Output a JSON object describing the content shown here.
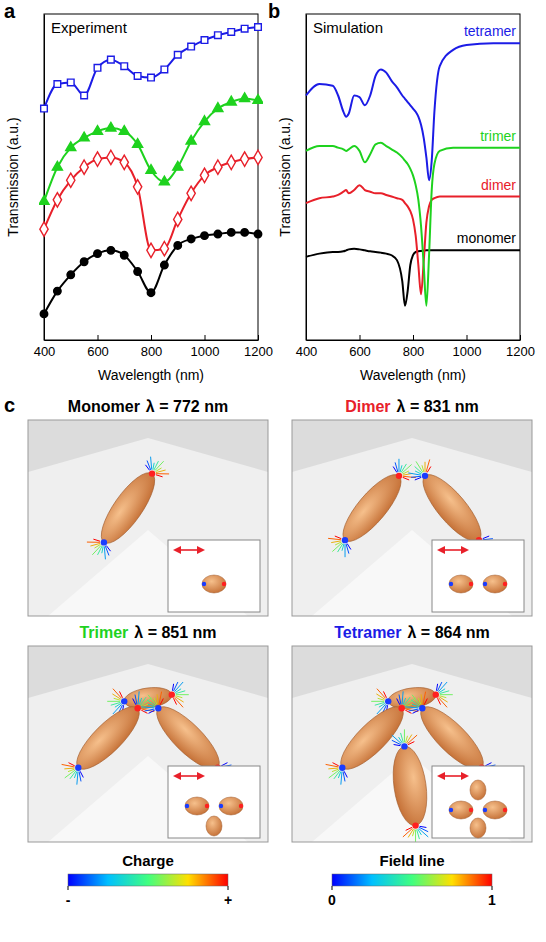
{
  "chart_data": [
    {
      "panel": "a",
      "type": "line",
      "title": "Experiment",
      "x_label": "Wavelength (nm)",
      "y_label": "Transmission (a.u.)",
      "x": [
        400,
        450,
        500,
        550,
        600,
        650,
        700,
        750,
        800,
        850,
        900,
        950,
        1000,
        1050,
        1100,
        1150,
        1200
      ],
      "xlim": [
        400,
        1200
      ],
      "ylim": [
        0,
        10
      ],
      "xticks": [
        400,
        600,
        800,
        1000,
        1200
      ],
      "tick_labels": "x",
      "series": [
        {
          "color": "#000000",
          "marker": "circle",
          "values": [
            0.8,
            1.5,
            2.0,
            2.4,
            2.65,
            2.75,
            2.6,
            2.1,
            1.45,
            2.3,
            2.9,
            3.1,
            3.2,
            3.25,
            3.3,
            3.3,
            3.25
          ]
        },
        {
          "color": "#e8202a",
          "marker": "diamond-open",
          "values": [
            3.4,
            4.3,
            4.9,
            5.3,
            5.55,
            5.6,
            5.45,
            4.7,
            2.75,
            2.8,
            3.7,
            4.5,
            5.05,
            5.3,
            5.45,
            5.55,
            5.6
          ]
        },
        {
          "color": "#1ed21e",
          "marker": "triangle",
          "values": [
            4.25,
            5.3,
            5.9,
            6.2,
            6.4,
            6.5,
            6.4,
            6.0,
            5.2,
            4.85,
            5.3,
            6.1,
            6.7,
            7.1,
            7.3,
            7.4,
            7.35
          ]
        },
        {
          "color": "#1c1ce6",
          "marker": "square-open",
          "values": [
            7.1,
            7.85,
            7.9,
            7.5,
            8.35,
            8.6,
            8.4,
            8.1,
            8.05,
            8.3,
            8.75,
            9.0,
            9.2,
            9.35,
            9.45,
            9.55,
            9.6
          ]
        }
      ]
    },
    {
      "panel": "b",
      "type": "line",
      "title": "Simulation",
      "x_label": "Wavelength (nm)",
      "y_label": "Transmission (a.u.)",
      "x": [
        400,
        450,
        500,
        520,
        540,
        550,
        560,
        580,
        600,
        620,
        640,
        660,
        680,
        700,
        720,
        740,
        760,
        770,
        780,
        790,
        800,
        810,
        820,
        830,
        840,
        850,
        860,
        870,
        880,
        900,
        950,
        1000,
        1100,
        1200
      ],
      "xlim": [
        400,
        1200
      ],
      "ylim": [
        0,
        10
      ],
      "xticks": [
        400,
        600,
        800,
        1000,
        1200
      ],
      "tick_labels": "x",
      "series": [
        {
          "name": "monomer",
          "color": "#000000",
          "values": [
            2.55,
            2.65,
            2.7,
            2.7,
            2.72,
            2.75,
            2.78,
            2.8,
            2.78,
            2.75,
            2.72,
            2.7,
            2.68,
            2.65,
            2.6,
            2.45,
            1.8,
            1.05,
            1.5,
            2.3,
            2.6,
            2.7,
            2.72,
            2.73,
            2.74,
            2.75,
            2.75,
            2.75,
            2.75,
            2.75,
            2.75,
            2.75,
            2.75,
            2.75
          ]
        },
        {
          "name": "dimer",
          "color": "#e8202a",
          "values": [
            4.2,
            4.35,
            4.4,
            4.45,
            4.55,
            4.6,
            4.5,
            4.6,
            4.75,
            4.6,
            4.55,
            4.5,
            4.5,
            4.45,
            4.4,
            4.35,
            4.3,
            4.2,
            4.1,
            3.95,
            3.7,
            3.2,
            2.3,
            1.4,
            2.4,
            3.6,
            4.1,
            4.3,
            4.35,
            4.4,
            4.4,
            4.4,
            4.4,
            4.4
          ]
        },
        {
          "name": "trimer",
          "color": "#1ed21e",
          "values": [
            5.8,
            5.95,
            5.95,
            5.9,
            5.85,
            5.8,
            5.85,
            5.95,
            5.8,
            5.45,
            5.7,
            6.0,
            6.05,
            5.95,
            5.85,
            5.75,
            5.6,
            5.5,
            5.4,
            5.25,
            5.05,
            4.75,
            4.3,
            3.5,
            2.3,
            1.05,
            2.6,
            4.6,
            5.4,
            5.8,
            5.9,
            5.9,
            5.9,
            5.9
          ]
        },
        {
          "name": "tetramer",
          "color": "#1c1ce6",
          "values": [
            7.5,
            7.85,
            7.8,
            7.5,
            7.0,
            6.85,
            6.95,
            7.5,
            7.45,
            7.2,
            7.5,
            8.1,
            8.3,
            8.2,
            7.95,
            7.75,
            7.5,
            7.4,
            7.3,
            7.2,
            7.1,
            7.0,
            6.85,
            6.6,
            6.2,
            5.6,
            4.9,
            5.5,
            7.0,
            8.4,
            8.9,
            9.05,
            9.1,
            9.1
          ]
        }
      ]
    }
  ],
  "panel_c": {
    "panel": "c",
    "views": [
      {
        "name": "Monomer",
        "color": "#000000",
        "wavelength": "λ = 772 nm"
      },
      {
        "name": "Dimer",
        "color": "#e8202a",
        "wavelength": "λ = 831 nm"
      },
      {
        "name": "Trimer",
        "color": "#1ed21e",
        "wavelength": "λ = 851 nm"
      },
      {
        "name": "Tetramer",
        "color": "#1c1ce6",
        "wavelength": "λ = 864 nm"
      }
    ],
    "colorbars": [
      {
        "title": "Charge",
        "ticks": [
          "-",
          "+"
        ]
      },
      {
        "title": "Field line",
        "range": [
          0,
          1
        ],
        "ticks": [
          0,
          1
        ]
      }
    ]
  }
}
